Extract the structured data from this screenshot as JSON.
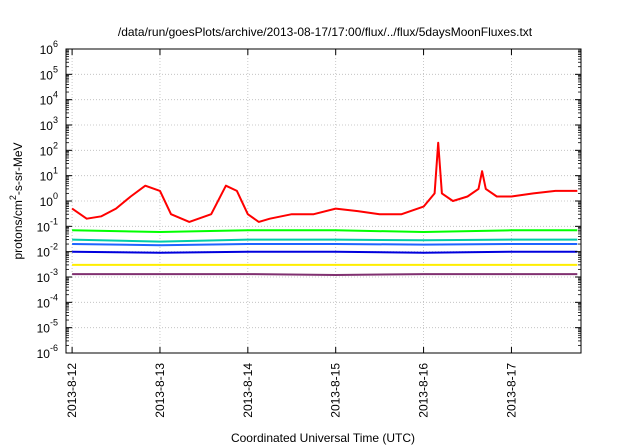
{
  "chart_data": {
    "type": "line",
    "title": "/data/run/goesPlots/archive/2013-08-17/17:00/flux/../flux/5daysMoonFluxes.txt",
    "xlabel": "Coordinated Universal Time (UTC)",
    "ylabel_parts": [
      "protons/cm",
      "2",
      "-s-sr-MeV"
    ],
    "y_scale": "log",
    "ylim": [
      1e-06,
      1000000.0
    ],
    "y_ticks": [
      {
        "base": "10",
        "exp": "-6",
        "value": 1e-06
      },
      {
        "base": "10",
        "exp": "-5",
        "value": 1e-05
      },
      {
        "base": "10",
        "exp": "-4",
        "value": 0.0001
      },
      {
        "base": "10",
        "exp": "-3",
        "value": 0.001
      },
      {
        "base": "10",
        "exp": "-2",
        "value": 0.01
      },
      {
        "base": "10",
        "exp": "-1",
        "value": 0.1
      },
      {
        "base": "10",
        "exp": "0",
        "value": 1
      },
      {
        "base": "10",
        "exp": "1",
        "value": 10
      },
      {
        "base": "10",
        "exp": "2",
        "value": 100
      },
      {
        "base": "10",
        "exp": "3",
        "value": 1000
      },
      {
        "base": "10",
        "exp": "4",
        "value": 10000
      },
      {
        "base": "10",
        "exp": "5",
        "value": 100000
      },
      {
        "base": "10",
        "exp": "6",
        "value": 1000000
      }
    ],
    "xlim": [
      "2013-08-11T22:20",
      "2013-08-17T19:00"
    ],
    "x_ticks": [
      "2013-8-12",
      "2013-8-13",
      "2013-8-14",
      "2013-8-15",
      "2013-8-16",
      "2013-8-17"
    ],
    "x_tick_dates": [
      "2013-08-12",
      "2013-08-13",
      "2013-08-14",
      "2013-08-15",
      "2013-08-16",
      "2013-08-17"
    ],
    "grid": true,
    "series": [
      {
        "color": "#ff0000",
        "x": [
          "2013-08-12T00:00",
          "2013-08-12T04:00",
          "2013-08-12T08:00",
          "2013-08-12T12:00",
          "2013-08-12T16:00",
          "2013-08-12T20:00",
          "2013-08-13T00:00",
          "2013-08-13T03:00",
          "2013-08-13T08:00",
          "2013-08-13T14:00",
          "2013-08-13T18:00",
          "2013-08-13T21:00",
          "2013-08-14T00:00",
          "2013-08-14T03:00",
          "2013-08-14T06:00",
          "2013-08-14T12:00",
          "2013-08-14T18:00",
          "2013-08-15T00:00",
          "2013-08-15T06:00",
          "2013-08-15T12:00",
          "2013-08-15T18:00",
          "2013-08-16T00:00",
          "2013-08-16T03:00",
          "2013-08-16T04:00",
          "2013-08-16T05:00",
          "2013-08-16T08:00",
          "2013-08-16T12:00",
          "2013-08-16T15:00",
          "2013-08-16T16:00",
          "2013-08-16T17:00",
          "2013-08-16T20:00",
          "2013-08-17T00:00",
          "2013-08-17T06:00",
          "2013-08-17T12:00",
          "2013-08-17T18:00"
        ],
        "values": [
          0.5,
          0.2,
          0.25,
          0.5,
          1.5,
          4.0,
          2.5,
          0.3,
          0.15,
          0.3,
          4.0,
          2.5,
          0.3,
          0.15,
          0.2,
          0.3,
          0.3,
          0.5,
          0.4,
          0.3,
          0.3,
          0.6,
          2.0,
          200,
          2.0,
          1.0,
          1.5,
          3.0,
          15,
          3.0,
          1.5,
          1.5,
          2.0,
          2.5,
          2.5
        ]
      },
      {
        "color": "#00ff00",
        "x": [
          "2013-08-12T00:00",
          "2013-08-13T00:00",
          "2013-08-14T00:00",
          "2013-08-15T00:00",
          "2013-08-16T00:00",
          "2013-08-17T00:00",
          "2013-08-17T18:00"
        ],
        "values": [
          0.07,
          0.06,
          0.07,
          0.07,
          0.06,
          0.07,
          0.07
        ]
      },
      {
        "color": "#00ccaa",
        "x": [
          "2013-08-12T00:00",
          "2013-08-13T00:00",
          "2013-08-14T00:00",
          "2013-08-15T00:00",
          "2013-08-16T00:00",
          "2013-08-17T00:00",
          "2013-08-17T18:00"
        ],
        "values": [
          0.03,
          0.025,
          0.03,
          0.03,
          0.028,
          0.03,
          0.03
        ]
      },
      {
        "color": "#1e64ff",
        "x": [
          "2013-08-12T00:00",
          "2013-08-13T00:00",
          "2013-08-14T00:00",
          "2013-08-15T00:00",
          "2013-08-16T00:00",
          "2013-08-17T00:00",
          "2013-08-17T18:00"
        ],
        "values": [
          0.02,
          0.018,
          0.02,
          0.02,
          0.019,
          0.02,
          0.02
        ]
      },
      {
        "color": "#0000dd",
        "x": [
          "2013-08-12T00:00",
          "2013-08-13T00:00",
          "2013-08-14T00:00",
          "2013-08-15T00:00",
          "2013-08-16T00:00",
          "2013-08-17T00:00",
          "2013-08-17T18:00"
        ],
        "values": [
          0.01,
          0.009,
          0.01,
          0.01,
          0.009,
          0.01,
          0.01
        ]
      },
      {
        "color": "#ffee00",
        "x": [
          "2013-08-12T00:00",
          "2013-08-13T00:00",
          "2013-08-14T00:00",
          "2013-08-15T00:00",
          "2013-08-16T00:00",
          "2013-08-17T00:00",
          "2013-08-17T18:00"
        ],
        "values": [
          0.003,
          0.003,
          0.003,
          0.003,
          0.003,
          0.003,
          0.003
        ]
      },
      {
        "color": "#803070",
        "x": [
          "2013-08-12T00:00",
          "2013-08-13T00:00",
          "2013-08-14T00:00",
          "2013-08-15T00:00",
          "2013-08-16T00:00",
          "2013-08-17T00:00",
          "2013-08-17T18:00"
        ],
        "values": [
          0.0013,
          0.0013,
          0.0013,
          0.0012,
          0.0013,
          0.0013,
          0.0013
        ]
      }
    ]
  }
}
